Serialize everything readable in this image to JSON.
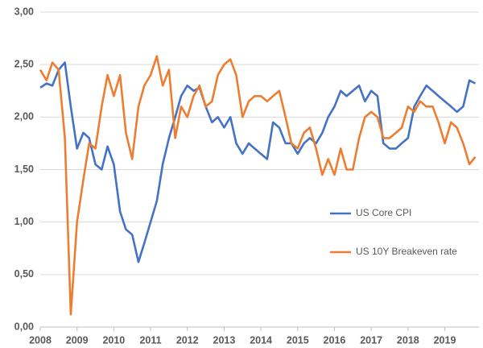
{
  "chart_data": {
    "type": "line",
    "x": [
      2008.0,
      2008.17,
      2008.33,
      2008.5,
      2008.67,
      2008.83,
      2009.0,
      2009.17,
      2009.33,
      2009.5,
      2009.67,
      2009.83,
      2010.0,
      2010.17,
      2010.33,
      2010.5,
      2010.67,
      2010.83,
      2011.0,
      2011.17,
      2011.33,
      2011.5,
      2011.67,
      2011.83,
      2012.0,
      2012.17,
      2012.33,
      2012.5,
      2012.67,
      2012.83,
      2013.0,
      2013.17,
      2013.33,
      2013.5,
      2013.67,
      2013.83,
      2014.0,
      2014.17,
      2014.33,
      2014.5,
      2014.67,
      2014.83,
      2015.0,
      2015.17,
      2015.33,
      2015.5,
      2015.67,
      2015.83,
      2016.0,
      2016.17,
      2016.33,
      2016.5,
      2016.67,
      2016.83,
      2017.0,
      2017.17,
      2017.33,
      2017.5,
      2017.67,
      2017.83,
      2018.0,
      2018.17,
      2018.33,
      2018.5,
      2018.67,
      2018.83,
      2019.0,
      2019.17,
      2019.33,
      2019.5,
      2019.67,
      2019.83
    ],
    "series": [
      {
        "name": "US Core CPI",
        "color": "#4472c4",
        "values": [
          2.28,
          2.32,
          2.3,
          2.45,
          2.52,
          2.1,
          1.7,
          1.85,
          1.8,
          1.55,
          1.5,
          1.72,
          1.55,
          1.1,
          0.93,
          0.88,
          0.62,
          0.8,
          1.0,
          1.2,
          1.55,
          1.8,
          2.0,
          2.2,
          2.3,
          2.25,
          2.28,
          2.1,
          1.95,
          2.0,
          1.9,
          2.0,
          1.75,
          1.65,
          1.75,
          1.7,
          1.65,
          1.6,
          1.95,
          1.9,
          1.75,
          1.75,
          1.65,
          1.75,
          1.8,
          1.75,
          1.85,
          2.0,
          2.1,
          2.25,
          2.2,
          2.25,
          2.3,
          2.15,
          2.25,
          2.2,
          1.75,
          1.7,
          1.7,
          1.75,
          1.8,
          2.1,
          2.2,
          2.3,
          2.25,
          2.2,
          2.15,
          2.1,
          2.05,
          2.1,
          2.35,
          2.32
        ]
      },
      {
        "name": "US 10Y Breakeven rate",
        "color": "#ed7d31",
        "values": [
          2.45,
          2.35,
          2.52,
          2.45,
          1.8,
          0.12,
          1.0,
          1.4,
          1.75,
          1.7,
          2.1,
          2.4,
          2.2,
          2.4,
          1.85,
          1.6,
          2.1,
          2.3,
          2.4,
          2.58,
          2.3,
          2.45,
          1.8,
          2.1,
          2.0,
          2.2,
          2.3,
          2.1,
          2.15,
          2.4,
          2.5,
          2.55,
          2.4,
          2.0,
          2.15,
          2.2,
          2.2,
          2.15,
          2.2,
          2.25,
          2.0,
          1.75,
          1.7,
          1.85,
          1.9,
          1.7,
          1.45,
          1.6,
          1.45,
          1.7,
          1.5,
          1.5,
          1.8,
          2.0,
          2.05,
          2.0,
          1.8,
          1.8,
          1.85,
          1.9,
          2.1,
          2.05,
          2.15,
          2.1,
          2.1,
          1.95,
          1.75,
          1.95,
          1.9,
          1.75,
          1.55,
          1.62
        ]
      }
    ],
    "xlim": [
      2008,
      2019.93
    ],
    "xticks": [
      2008,
      2009,
      2010,
      2011,
      2012,
      2013,
      2014,
      2015,
      2016,
      2017,
      2018,
      2019
    ],
    "ylim": [
      0,
      3
    ],
    "yticks": [
      {
        "value": 0,
        "label": "0,00"
      },
      {
        "value": 0.5,
        "label": "0,50"
      },
      {
        "value": 1,
        "label": "1,00"
      },
      {
        "value": 1.5,
        "label": "1,50"
      },
      {
        "value": 2,
        "label": "2,00"
      },
      {
        "value": 2.5,
        "label": "2,50"
      },
      {
        "value": 3,
        "label": "3,00"
      }
    ],
    "grid": true,
    "legend": "right"
  }
}
